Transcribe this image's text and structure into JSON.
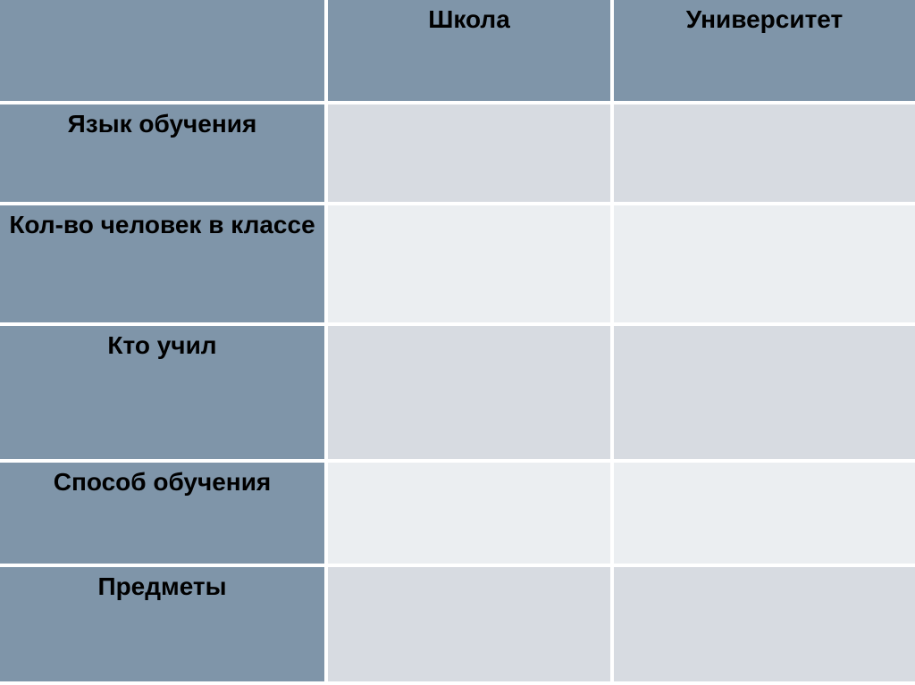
{
  "table": {
    "columns": [
      "",
      "Школа",
      "Университет"
    ],
    "rows": [
      {
        "label": "Язык обучения",
        "school": "",
        "university": ""
      },
      {
        "label": "Кол-во человек в классе",
        "school": "",
        "university": ""
      },
      {
        "label": "Кто учил",
        "school": "",
        "university": ""
      },
      {
        "label": "Способ обучения",
        "school": "",
        "university": ""
      },
      {
        "label": "Предметы",
        "school": "",
        "university": ""
      }
    ],
    "colors": {
      "header_fill": "#7f95a9",
      "band_dark": "#d7dbe1",
      "band_light": "#ebeef1",
      "divider": "#ffffff",
      "text": "#000000"
    }
  }
}
